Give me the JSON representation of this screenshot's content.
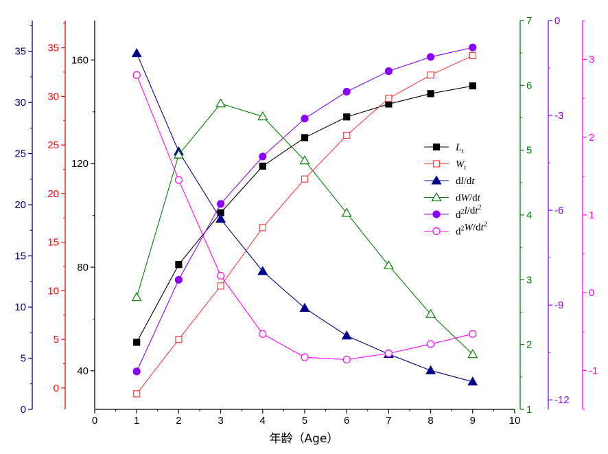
{
  "chart_data": {
    "type": "line",
    "xlabel": "年龄（Age）",
    "xlim": [
      0,
      10
    ],
    "x_ticks": [
      0,
      1,
      2,
      3,
      4,
      5,
      6,
      7,
      8,
      9,
      10
    ],
    "x": [
      1,
      2,
      3,
      4,
      5,
      6,
      7,
      8,
      9
    ],
    "grid": false,
    "legend_position": "center-right",
    "axes": {
      "Lt": {
        "side": "left",
        "color": "#000000",
        "ylim": [
          25.1,
          175.2
        ],
        "ticks": [
          40,
          80,
          120,
          160
        ]
      },
      "Wt": {
        "side": "left",
        "color": "#ff0000",
        "ylim": [
          -2.2,
          37.8
        ],
        "ticks": [
          0,
          5,
          10,
          15,
          20,
          25,
          30,
          35
        ]
      },
      "dl_dt": {
        "side": "left",
        "color": "#00008b",
        "ylim": [
          0,
          38
        ],
        "ticks": [
          0,
          5,
          10,
          15,
          20,
          25,
          30,
          35
        ]
      },
      "dW_dt": {
        "side": "right",
        "color": "#008000",
        "ylim": [
          1,
          7
        ],
        "ticks": [
          1,
          2,
          3,
          4,
          5,
          6,
          7
        ]
      },
      "d2l_dt2": {
        "side": "right",
        "color": "#8b00ff",
        "ylim": [
          -12.3,
          0
        ],
        "ticks": [
          -12,
          -9,
          -6,
          -3,
          0
        ]
      },
      "d2W_dt2": {
        "side": "right",
        "color": "#ff00ff",
        "ylim": [
          -1.5,
          3.5
        ],
        "ticks": [
          -1,
          0,
          1,
          2,
          3
        ]
      }
    },
    "series": [
      {
        "key": "Lt",
        "axis": "Lt",
        "color": "#000000",
        "marker": "square",
        "filled": true,
        "values": [
          51,
          81,
          101,
          119,
          130,
          138,
          143,
          147,
          150
        ]
      },
      {
        "key": "Wt",
        "axis": "Wt",
        "color": "#ff3b3b",
        "marker": "square",
        "filled": false,
        "values": [
          -0.6,
          5.0,
          10.5,
          16.5,
          21.5,
          26.0,
          29.8,
          32.2,
          34.2
        ]
      },
      {
        "key": "dl_dt",
        "axis": "dl_dt",
        "color": "#00008b",
        "marker": "triangle",
        "filled": true,
        "values": [
          34.8,
          25.2,
          18.6,
          13.5,
          9.9,
          7.2,
          5.4,
          3.8,
          2.7
        ]
      },
      {
        "key": "dW_dt",
        "axis": "dW_dt",
        "color": "#008000",
        "marker": "triangle",
        "filled": false,
        "values": [
          2.73,
          4.93,
          5.72,
          5.52,
          4.84,
          4.03,
          3.22,
          2.47,
          1.85
        ]
      },
      {
        "key": "d2l_dt2",
        "axis": "d2l_dt2",
        "color": "#8b00ff",
        "marker": "circle",
        "filled": true,
        "values": [
          -11.1,
          -8.2,
          -5.8,
          -4.3,
          -3.1,
          -2.25,
          -1.6,
          -1.15,
          -0.85
        ]
      },
      {
        "key": "d2W_dt2",
        "axis": "d2W_dt2",
        "color": "#ff00ff",
        "marker": "circle",
        "filled": false,
        "values": [
          2.8,
          1.45,
          0.22,
          -0.53,
          -0.83,
          -0.86,
          -0.78,
          -0.66,
          -0.53
        ]
      }
    ],
    "legend": [
      {
        "key": "Lt",
        "parts": [
          [
            "i",
            "L"
          ],
          [
            "sub-i",
            "t"
          ]
        ]
      },
      {
        "key": "Wt",
        "parts": [
          [
            "i",
            "W"
          ],
          [
            "sub-i",
            "t"
          ]
        ]
      },
      {
        "key": "dl_dt",
        "parts": [
          [
            "n",
            "d"
          ],
          [
            "i",
            "l"
          ],
          [
            "n",
            "/d"
          ],
          [
            "i",
            "t"
          ]
        ]
      },
      {
        "key": "dW_dt",
        "parts": [
          [
            "n",
            "d"
          ],
          [
            "i",
            "W"
          ],
          [
            "n",
            "/d"
          ],
          [
            "i",
            "t"
          ]
        ]
      },
      {
        "key": "d2l_dt2",
        "parts": [
          [
            "n",
            "d"
          ],
          [
            "sup",
            "2"
          ],
          [
            "i",
            "l"
          ],
          [
            "n",
            "/d"
          ],
          [
            "i",
            "t"
          ],
          [
            "sup",
            "2"
          ]
        ]
      },
      {
        "key": "d2W_dt2",
        "parts": [
          [
            "n",
            "d"
          ],
          [
            "sup",
            "2"
          ],
          [
            "i",
            "W"
          ],
          [
            "n",
            "/d"
          ],
          [
            "i",
            "t"
          ],
          [
            "sup",
            "2"
          ]
        ]
      }
    ]
  }
}
